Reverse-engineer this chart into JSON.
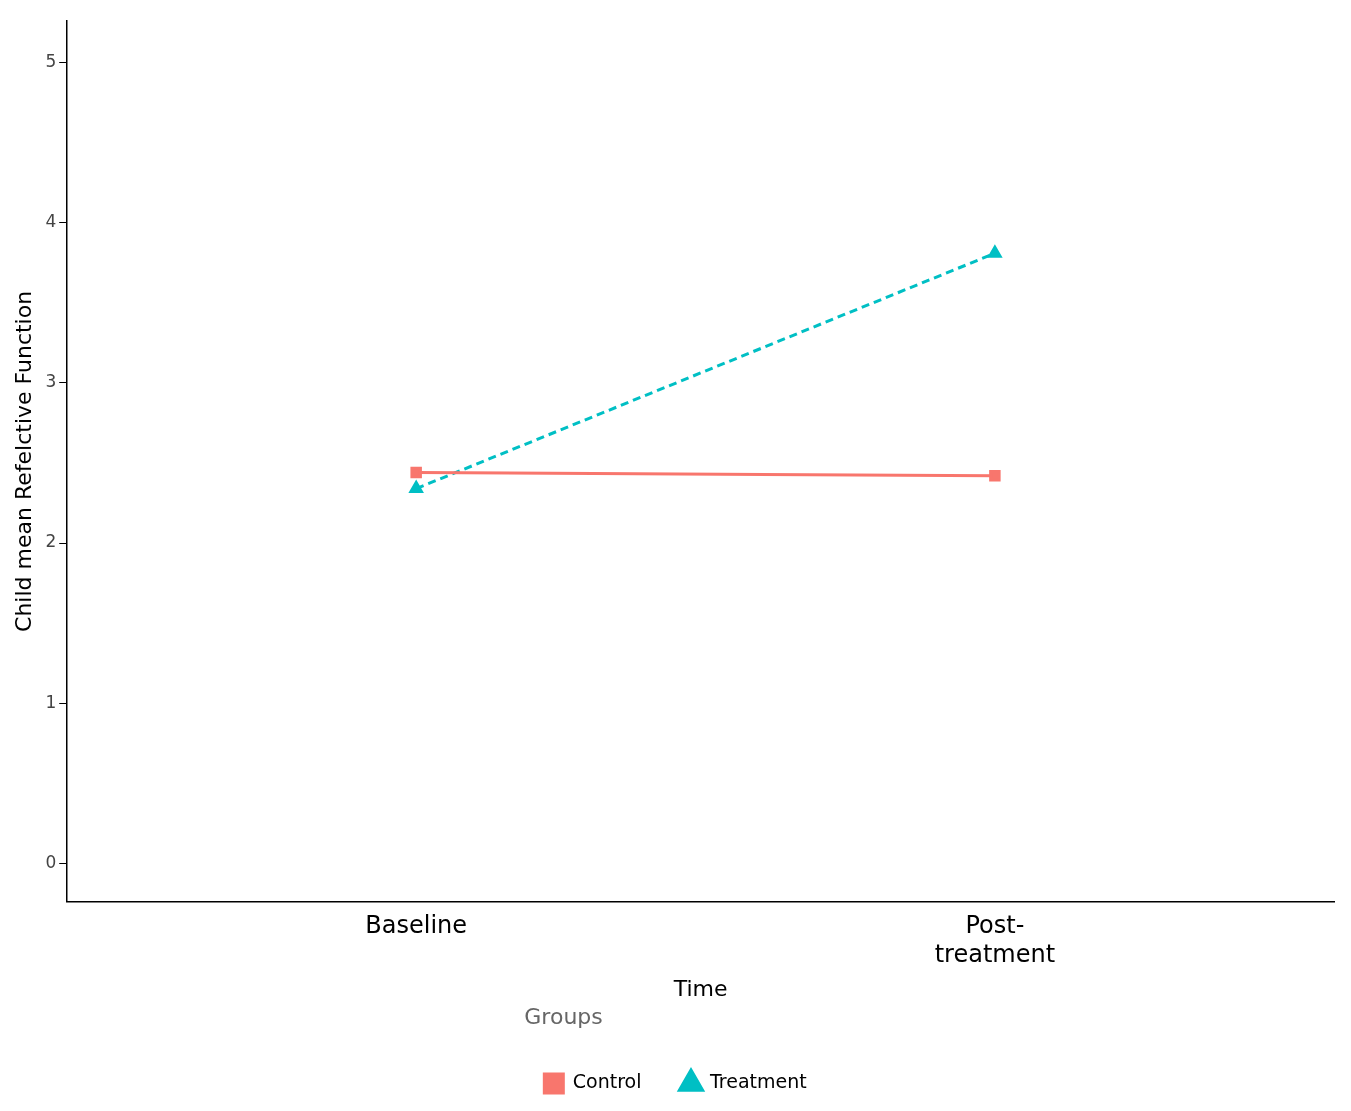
{
  "chart_data": {
    "type": "line",
    "xlabel": "Time",
    "ylabel": "Child mean Refelctive Function",
    "legend_title": "Groups",
    "categories": [
      "Baseline",
      "Post-treatment"
    ],
    "series": [
      {
        "name": "Control",
        "color": "#f8766d",
        "values": [
          2.44,
          2.42
        ],
        "marker": "square",
        "line_style": "solid"
      },
      {
        "name": "Treatment",
        "color": "#00bfc4",
        "values": [
          2.34,
          3.81
        ],
        "marker": "triangle",
        "line_style": "dashed"
      }
    ],
    "ylim": [
      -0.24,
      5.26
    ],
    "yticks": [
      0,
      1,
      2,
      3,
      4,
      5
    ],
    "grid": false,
    "legend": "bottom"
  }
}
